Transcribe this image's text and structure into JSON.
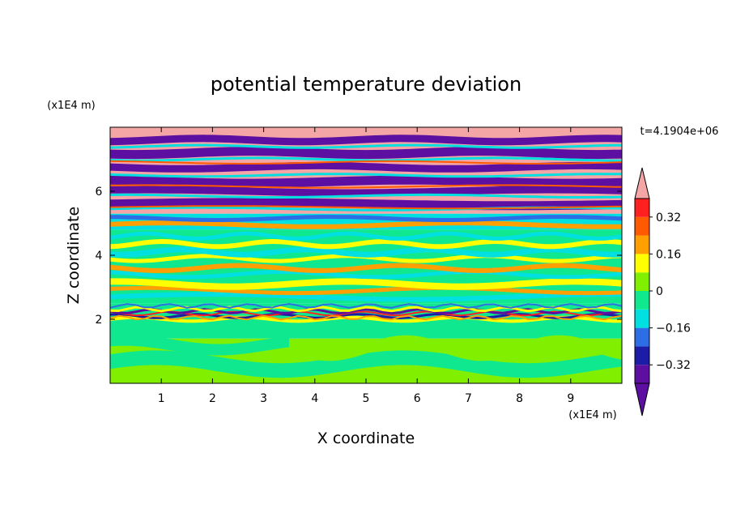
{
  "chart_data": {
    "type": "heatmap",
    "title": "potential temperature deviation",
    "xlabel": "X coordinate",
    "ylabel": "Z coordinate",
    "x_unit": "(x1E4 m)",
    "y_unit": "(x1E4 m)",
    "time_label": "t=4.1904e+06",
    "xlim": [
      0,
      10
    ],
    "ylim": [
      0,
      8
    ],
    "x_ticks": [
      "1",
      "2",
      "3",
      "4",
      "5",
      "6",
      "7",
      "8",
      "9"
    ],
    "y_ticks": [
      "2",
      "4",
      "6"
    ],
    "colorbar": {
      "levels": [
        -0.4,
        -0.32,
        -0.24,
        -0.16,
        -0.08,
        0,
        0.08,
        0.16,
        0.24,
        0.32,
        0.4
      ],
      "tick_labels": [
        "0.32",
        "0.16",
        "0",
        "−0.16",
        "−0.32"
      ],
      "tick_values": [
        0.32,
        0.16,
        0,
        -0.16,
        -0.32
      ],
      "colors_low_to_high": [
        "#5c0fa0",
        "#1c1ca6",
        "#2d6ee6",
        "#00e0e0",
        "#10e890",
        "#80f000",
        "#ffff00",
        "#ffa000",
        "#ff5a00",
        "#ff2020",
        "#f4a6a6"
      ],
      "extend": "both"
    },
    "bands_by_height": [
      {
        "z": [
          0.0,
          1.4
        ],
        "dominant": "#80f000",
        "mixed_with": "#10e890"
      },
      {
        "z": [
          1.4,
          2.0
        ],
        "dominant": "#10e890",
        "mixed_with": "#80f000"
      },
      {
        "z": [
          2.0,
          2.5
        ],
        "dominant": "mixed",
        "mixed_with": "#1c1ca6"
      },
      {
        "z": [
          2.5,
          4.8
        ],
        "dominant": "#10e890",
        "mixed_with": "#ffff00"
      },
      {
        "z": [
          4.8,
          5.3
        ],
        "dominant": "#00e0e0",
        "mixed_with": "#ffa000"
      },
      {
        "z": [
          5.3,
          8.0
        ],
        "dominant": "#f4a6a6",
        "mixed_with": "#5c0fa0"
      }
    ]
  }
}
